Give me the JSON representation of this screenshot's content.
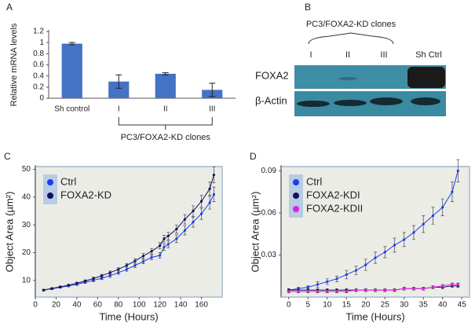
{
  "chart_data": [
    {
      "type": "bar",
      "panel": "A",
      "ylabel": "Relative mRNA levels",
      "categories": [
        "Sh control",
        "I",
        "II",
        "III"
      ],
      "values": [
        0.98,
        0.3,
        0.44,
        0.15
      ],
      "errors": [
        0.02,
        0.12,
        0.02,
        0.12
      ],
      "color": "#4472c4",
      "ylim": [
        0,
        1.2
      ],
      "yticks": [
        0,
        0.2,
        0.4,
        0.6,
        0.8,
        1,
        1.2
      ],
      "annotation": "PC3/FOXA2-KD clones"
    },
    {
      "type": "line",
      "panel": "C",
      "xlabel": "Time (Hours)",
      "ylabel": "Object Area (µm²)",
      "x": [
        8,
        16,
        24,
        32,
        40,
        48,
        56,
        64,
        72,
        80,
        88,
        96,
        104,
        112,
        120,
        124,
        128,
        136,
        144,
        152,
        160,
        168,
        172
      ],
      "series": [
        {
          "name": "Ctrl",
          "color": "#1a3ee8",
          "values": [
            6.5,
            7,
            7.5,
            8,
            8.6,
            9.3,
            10,
            10.8,
            11.7,
            12.8,
            14,
            15.4,
            16.8,
            18.3,
            19,
            22,
            23,
            25,
            28,
            31,
            34,
            38,
            41
          ],
          "errors": [
            0.3,
            0.3,
            0.3,
            0.3,
            0.4,
            0.4,
            0.5,
            0.5,
            0.6,
            0.6,
            0.7,
            0.8,
            0.8,
            0.9,
            1,
            1.2,
            1.2,
            1.4,
            1.6,
            1.8,
            2,
            2.3,
            2.6
          ]
        },
        {
          "name": "FOXA2-KD",
          "color": "#10105e",
          "values": [
            6.5,
            7.1,
            7.7,
            8.3,
            9,
            9.8,
            10.7,
            11.7,
            12.8,
            14,
            15.4,
            17,
            18.8,
            20.5,
            22.5,
            25,
            26,
            28.5,
            32,
            35,
            38.5,
            43,
            48
          ],
          "errors": [
            0.3,
            0.3,
            0.3,
            0.3,
            0.4,
            0.4,
            0.5,
            0.5,
            0.6,
            0.6,
            0.7,
            0.8,
            0.9,
            1,
            1.1,
            1.2,
            1.3,
            1.5,
            1.7,
            1.9,
            2.1,
            2.4,
            2.8
          ]
        }
      ],
      "xlim": [
        0,
        180
      ],
      "xticks": [
        0,
        20,
        40,
        60,
        80,
        100,
        120,
        140,
        160
      ],
      "ylim": [
        4,
        51
      ],
      "yticks": [
        10,
        20,
        30,
        40,
        50
      ]
    },
    {
      "type": "line",
      "panel": "D",
      "xlabel": "Time (Hours)",
      "ylabel": "Object Area (µm²)",
      "x": [
        0,
        2.5,
        5,
        7.5,
        10,
        12.5,
        15,
        17.5,
        20,
        22.5,
        25,
        27.5,
        30,
        32.5,
        35,
        37.5,
        40,
        42.5,
        44
      ],
      "series": [
        {
          "name": "Ctrl",
          "color": "#1a3ee8",
          "values": [
            0.005,
            0.006,
            0.007,
            0.009,
            0.011,
            0.013,
            0.016,
            0.019,
            0.023,
            0.028,
            0.032,
            0.037,
            0.041,
            0.046,
            0.052,
            0.058,
            0.064,
            0.075,
            0.09
          ],
          "errors": [
            0.001,
            0.001,
            0.001,
            0.002,
            0.002,
            0.002,
            0.003,
            0.003,
            0.004,
            0.004,
            0.004,
            0.005,
            0.005,
            0.005,
            0.006,
            0.006,
            0.006,
            0.007,
            0.008
          ]
        },
        {
          "name": "FOXA2-KDI",
          "color": "#10105e",
          "values": [
            0.005,
            0.005,
            0.005,
            0.005,
            0.005,
            0.005,
            0.005,
            0.005,
            0.005,
            0.005,
            0.005,
            0.005,
            0.006,
            0.006,
            0.006,
            0.007,
            0.007,
            0.008,
            0.008
          ],
          "errors": [
            0.001,
            0.001,
            0.001,
            0.001,
            0.001,
            0.001,
            0.001,
            0.001,
            0.001,
            0.001,
            0.001,
            0.001,
            0.001,
            0.001,
            0.001,
            0.001,
            0.001,
            0.001,
            0.001
          ]
        },
        {
          "name": "FOXA2-KDII",
          "color": "#e020e0",
          "values": [
            0.004,
            0.004,
            0.004,
            0.004,
            0.004,
            0.004,
            0.004,
            0.005,
            0.005,
            0.005,
            0.005,
            0.005,
            0.006,
            0.006,
            0.006,
            0.007,
            0.008,
            0.009,
            0.009
          ],
          "errors": [
            0.001,
            0.001,
            0.001,
            0.001,
            0.001,
            0.001,
            0.001,
            0.001,
            0.001,
            0.001,
            0.001,
            0.001,
            0.001,
            0.001,
            0.001,
            0.001,
            0.001,
            0.001,
            0.001
          ]
        }
      ],
      "xlim": [
        -2,
        47
      ],
      "xticks": [
        0,
        5,
        10,
        15,
        20,
        25,
        30,
        35,
        40,
        45
      ],
      "ylim": [
        0,
        0.093
      ],
      "yticks": [
        0.03,
        0.06,
        0.09
      ]
    }
  ],
  "blot": {
    "panel": "B",
    "title": "PC3/FOXA2-KD clones",
    "lanes": [
      "I",
      "II",
      "III",
      "Sh Ctrl"
    ],
    "rows": [
      "FOXA2",
      "β-Actin"
    ]
  }
}
